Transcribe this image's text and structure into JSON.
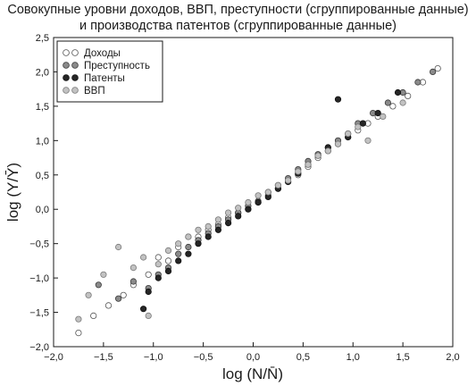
{
  "chart_data": {
    "type": "scatter",
    "title_line1": "Совокупные уровни доходов, ВВП, преступности (сгруппированные данные)",
    "title_line2": "и производства патентов (сгруппированные данные)",
    "xlabel": "log (N/N̄)",
    "ylabel": "log (Y/Ȳ)",
    "xlim": [
      -2.0,
      2.0
    ],
    "ylim": [
      -2.0,
      2.5
    ],
    "xticks": [
      "−2,0",
      "−1,5",
      "−1,0",
      "−0,5",
      "0,0",
      "0,5",
      "1,0",
      "1,5",
      "2,0"
    ],
    "xtick_values": [
      -2.0,
      -1.5,
      -1.0,
      -0.5,
      0.0,
      0.5,
      1.0,
      1.5,
      2.0
    ],
    "yticks": [
      "−2,0",
      "−1,5",
      "−1,0",
      "−0,5",
      "0,0",
      "0,5",
      "1,0",
      "1,5",
      "2,0",
      "2,5"
    ],
    "ytick_values": [
      -2.0,
      -1.5,
      -1.0,
      -0.5,
      0.0,
      0.5,
      1.0,
      1.5,
      2.0,
      2.5
    ],
    "legend_position": "top-left",
    "grid": false,
    "series": [
      {
        "name": "Доходы",
        "color": "#ffffff",
        "stroke": "#555555",
        "points": [
          [
            -1.75,
            -1.8
          ],
          [
            -1.6,
            -1.55
          ],
          [
            -1.45,
            -1.4
          ],
          [
            -1.3,
            -1.25
          ],
          [
            -1.2,
            -1.1
          ],
          [
            -1.05,
            -0.95
          ],
          [
            -0.95,
            -0.7
          ],
          [
            -0.85,
            -0.75
          ],
          [
            -0.75,
            -0.55
          ],
          [
            -0.65,
            -0.4
          ],
          [
            -0.55,
            -0.4
          ],
          [
            -0.45,
            -0.3
          ],
          [
            -0.35,
            -0.22
          ],
          [
            -0.25,
            -0.12
          ],
          [
            -0.15,
            -0.05
          ],
          [
            -0.05,
            0.0
          ],
          [
            0.05,
            0.1
          ],
          [
            0.15,
            0.2
          ],
          [
            0.25,
            0.3
          ],
          [
            0.35,
            0.4
          ],
          [
            0.45,
            0.5
          ],
          [
            0.55,
            0.62
          ],
          [
            0.65,
            0.75
          ],
          [
            0.75,
            0.85
          ],
          [
            0.85,
            0.95
          ],
          [
            0.95,
            1.05
          ],
          [
            1.05,
            1.15
          ],
          [
            1.15,
            1.25
          ],
          [
            1.25,
            1.35
          ],
          [
            1.4,
            1.5
          ],
          [
            1.55,
            1.65
          ],
          [
            1.7,
            1.85
          ],
          [
            1.85,
            2.05
          ]
        ]
      },
      {
        "name": "Преступность",
        "color": "#8a8a8a",
        "stroke": "#3a3a3a",
        "points": [
          [
            -1.55,
            -1.1
          ],
          [
            -1.35,
            -1.3
          ],
          [
            -1.2,
            -1.05
          ],
          [
            -1.05,
            -1.15
          ],
          [
            -0.95,
            -0.95
          ],
          [
            -0.85,
            -0.85
          ],
          [
            -0.75,
            -0.65
          ],
          [
            -0.65,
            -0.55
          ],
          [
            -0.55,
            -0.45
          ],
          [
            -0.45,
            -0.35
          ],
          [
            -0.35,
            -0.25
          ],
          [
            -0.25,
            -0.15
          ],
          [
            -0.15,
            -0.05
          ],
          [
            -0.05,
            0.05
          ],
          [
            0.05,
            0.12
          ],
          [
            0.15,
            0.25
          ],
          [
            0.25,
            0.35
          ],
          [
            0.35,
            0.45
          ],
          [
            0.45,
            0.58
          ],
          [
            0.55,
            0.7
          ],
          [
            0.65,
            0.8
          ],
          [
            0.75,
            0.9
          ],
          [
            0.85,
            1.0
          ],
          [
            0.95,
            1.1
          ],
          [
            1.05,
            1.25
          ],
          [
            1.2,
            1.4
          ],
          [
            1.35,
            1.55
          ],
          [
            1.5,
            1.7
          ],
          [
            1.65,
            1.85
          ],
          [
            1.8,
            2.0
          ]
        ]
      },
      {
        "name": "Патенты",
        "color": "#262626",
        "stroke": "#111111",
        "points": [
          [
            -1.1,
            -1.45
          ],
          [
            -1.05,
            -1.2
          ],
          [
            -0.95,
            -1.0
          ],
          [
            -0.85,
            -0.9
          ],
          [
            -0.75,
            -0.75
          ],
          [
            -0.65,
            -0.65
          ],
          [
            -0.55,
            -0.5
          ],
          [
            -0.45,
            -0.4
          ],
          [
            -0.35,
            -0.3
          ],
          [
            -0.25,
            -0.2
          ],
          [
            -0.15,
            -0.1
          ],
          [
            -0.05,
            0.0
          ],
          [
            0.05,
            0.1
          ],
          [
            0.15,
            0.18
          ],
          [
            0.25,
            0.3
          ],
          [
            0.35,
            0.4
          ],
          [
            0.45,
            0.52
          ],
          [
            0.55,
            0.65
          ],
          [
            0.65,
            0.78
          ],
          [
            0.75,
            0.9
          ],
          [
            0.85,
            1.6
          ],
          [
            0.95,
            1.05
          ],
          [
            1.1,
            1.25
          ],
          [
            1.25,
            1.4
          ],
          [
            1.45,
            1.7
          ]
        ]
      },
      {
        "name": "ВВП",
        "color": "#c2c2c2",
        "stroke": "#7a7a7a",
        "points": [
          [
            -1.75,
            -1.6
          ],
          [
            -1.65,
            -1.25
          ],
          [
            -1.5,
            -0.95
          ],
          [
            -1.35,
            -0.55
          ],
          [
            -1.2,
            -0.85
          ],
          [
            -1.1,
            -0.7
          ],
          [
            -1.05,
            -1.55
          ],
          [
            -0.95,
            -0.8
          ],
          [
            -0.85,
            -0.6
          ],
          [
            -0.75,
            -0.5
          ],
          [
            -0.65,
            -0.4
          ],
          [
            -0.55,
            -0.3
          ],
          [
            -0.45,
            -0.25
          ],
          [
            -0.35,
            -0.15
          ],
          [
            -0.25,
            -0.05
          ],
          [
            -0.15,
            0.02
          ],
          [
            -0.05,
            0.1
          ],
          [
            0.05,
            0.2
          ],
          [
            0.15,
            0.25
          ],
          [
            0.25,
            0.35
          ],
          [
            0.35,
            0.42
          ],
          [
            0.45,
            0.55
          ],
          [
            0.55,
            0.65
          ],
          [
            0.65,
            0.78
          ],
          [
            0.75,
            0.85
          ],
          [
            0.85,
            0.95
          ],
          [
            0.95,
            1.1
          ],
          [
            1.05,
            1.2
          ],
          [
            1.15,
            1.0
          ],
          [
            1.3,
            1.35
          ],
          [
            1.5,
            1.55
          ]
        ]
      }
    ]
  }
}
